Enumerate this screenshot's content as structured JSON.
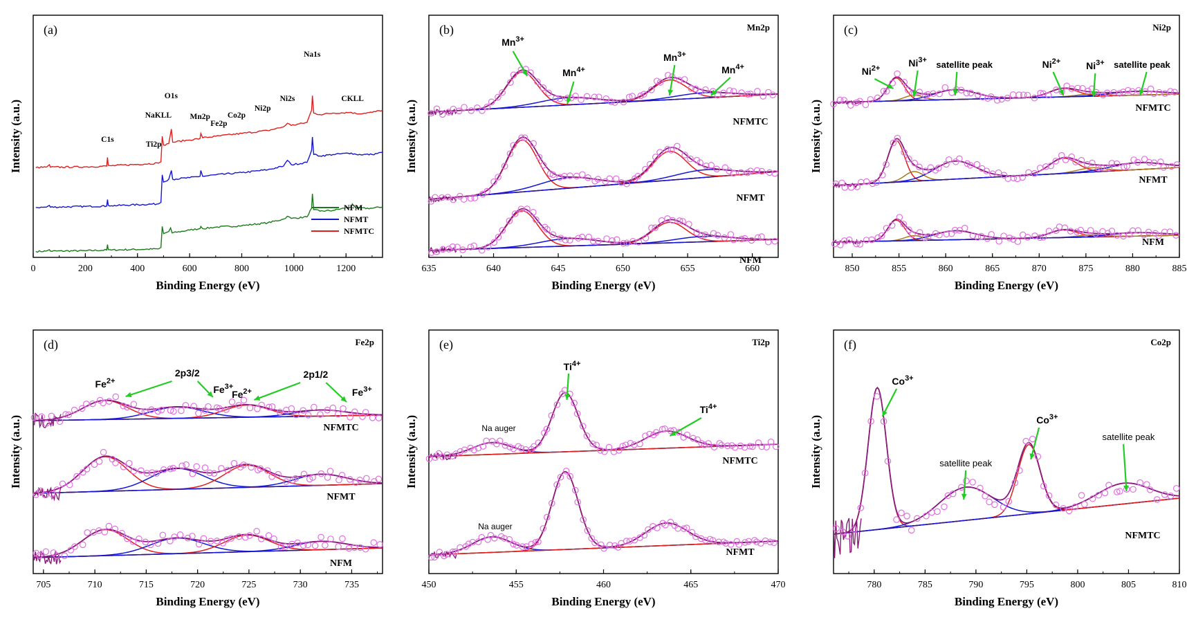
{
  "colors": {
    "nfm": "#1a7a1a",
    "nfmt": "#1414d4",
    "nfmtc": "#e01e1e",
    "fit_envelope": "#8a1a7a",
    "component_1": "#e01e1e",
    "component_2": "#1414d4",
    "component_3": "#a87a1a",
    "background": "#2a7a1a",
    "raw_points": "#e070e0",
    "arrow": "#22cc22"
  },
  "ylabel": "Intensity (a.u.)",
  "xlabel": "Binding Energy (eV)",
  "chart_data": [
    {
      "id": "a",
      "panel_label": "(a)",
      "type": "line",
      "x_ticks": [
        0,
        200,
        400,
        600,
        800,
        1000,
        1200
      ],
      "xlim": [
        0,
        1340
      ],
      "legend": [
        "NFM",
        "NFMT",
        "NFMTC"
      ],
      "legend_position": "bottom-right",
      "series": [
        {
          "name": "NFM",
          "offset": 0.0,
          "points": [
            [
              10,
              0.5
            ],
            [
              50,
              1
            ],
            [
              62,
              3
            ],
            [
              66,
              1
            ],
            [
              200,
              1.5
            ],
            [
              282,
              2.5
            ],
            [
              285,
              10
            ],
            [
              288,
              3
            ],
            [
              300,
              2.5
            ],
            [
              480,
              4
            ],
            [
              490,
              6
            ],
            [
              495,
              35
            ],
            [
              500,
              25
            ],
            [
              520,
              28
            ],
            [
              527,
              33
            ],
            [
              533,
              26
            ],
            [
              600,
              30
            ],
            [
              640,
              32
            ],
            [
              643,
              35
            ],
            [
              650,
              32
            ],
            [
              700,
              34
            ],
            [
              800,
              36
            ],
            [
              900,
              40
            ],
            [
              960,
              45
            ],
            [
              975,
              49
            ],
            [
              990,
              46
            ],
            [
              1050,
              48
            ],
            [
              1068,
              60
            ],
            [
              1071,
              80
            ],
            [
              1076,
              58
            ],
            [
              1100,
              56
            ],
            [
              1150,
              57
            ],
            [
              1220,
              62
            ],
            [
              1224,
              66
            ],
            [
              1240,
              60
            ],
            [
              1300,
              60
            ],
            [
              1340,
              62
            ]
          ]
        },
        {
          "name": "NFMT",
          "offset": 0.0,
          "points": [
            [
              10,
              1
            ],
            [
              50,
              1.5
            ],
            [
              62,
              4
            ],
            [
              66,
              1.5
            ],
            [
              200,
              2.5
            ],
            [
              282,
              3
            ],
            [
              285,
              12
            ],
            [
              288,
              4
            ],
            [
              300,
              3.5
            ],
            [
              480,
              6
            ],
            [
              490,
              8
            ],
            [
              495,
              46
            ],
            [
              500,
              36
            ],
            [
              520,
              40
            ],
            [
              530,
              52
            ],
            [
              535,
              40
            ],
            [
              600,
              42
            ],
            [
              640,
              44
            ],
            [
              643,
              52
            ],
            [
              650,
              44
            ],
            [
              700,
              46
            ],
            [
              800,
              49
            ],
            [
              900,
              53
            ],
            [
              960,
              58
            ],
            [
              975,
              66
            ],
            [
              990,
              60
            ],
            [
              1050,
              63
            ],
            [
              1068,
              80
            ],
            [
              1071,
              98
            ],
            [
              1076,
              74
            ],
            [
              1100,
              72
            ],
            [
              1150,
              74
            ],
            [
              1220,
              76
            ],
            [
              1240,
              74
            ],
            [
              1300,
              74
            ],
            [
              1340,
              77
            ]
          ]
        },
        {
          "name": "NFMTC",
          "offset": 0.0,
          "points": [
            [
              10,
              1
            ],
            [
              50,
              1.5
            ],
            [
              62,
              5
            ],
            [
              66,
              1.5
            ],
            [
              200,
              2
            ],
            [
              282,
              3
            ],
            [
              285,
              15
            ],
            [
              288,
              4
            ],
            [
              300,
              3.5
            ],
            [
              480,
              7
            ],
            [
              490,
              9
            ],
            [
              495,
              44
            ],
            [
              500,
              32
            ],
            [
              520,
              34
            ],
            [
              530,
              54
            ],
            [
              535,
              36
            ],
            [
              600,
              39
            ],
            [
              640,
              41
            ],
            [
              643,
              48
            ],
            [
              650,
              42
            ],
            [
              700,
              44
            ],
            [
              800,
              48
            ],
            [
              900,
              52
            ],
            [
              960,
              57
            ],
            [
              975,
              62
            ],
            [
              990,
              59
            ],
            [
              1050,
              63
            ],
            [
              1068,
              80
            ],
            [
              1071,
              100
            ],
            [
              1076,
              76
            ],
            [
              1100,
              74
            ],
            [
              1150,
              76
            ],
            [
              1220,
              77
            ],
            [
              1240,
              75
            ],
            [
              1300,
              77
            ],
            [
              1340,
              80
            ]
          ]
        }
      ],
      "annotations": [
        "C1s",
        "Ti2p",
        "NaKLL",
        "O1s",
        "Mn2p",
        "Fe2p",
        "Co2p",
        "Ni2p",
        "Ni2s",
        "Na1s",
        "CKLL"
      ]
    },
    {
      "id": "b",
      "panel_label": "(b)",
      "element_label": "Mn2p",
      "type": "line",
      "xlim": [
        635,
        662
      ],
      "x_ticks": [
        635,
        640,
        645,
        650,
        655,
        660
      ],
      "samples": [
        "NFMTC",
        "NFMT",
        "NFM"
      ],
      "peaks": [
        {
          "name": "Mn3+",
          "center": 642.2,
          "label": "Mn3+"
        },
        {
          "name": "Mn4+",
          "center": 645.5,
          "label": "Mn4+"
        },
        {
          "name": "Mn3+",
          "center": 653.7,
          "label": "Mn3+"
        },
        {
          "name": "Mn4+",
          "center": 656.0,
          "label": "Mn4+"
        }
      ]
    },
    {
      "id": "c",
      "panel_label": "(c)",
      "element_label": "Ni2p",
      "type": "line",
      "xlim": [
        848,
        885
      ],
      "x_ticks": [
        850,
        855,
        860,
        865,
        870,
        875,
        880,
        885
      ],
      "samples": [
        "NFMTC",
        "NFMT",
        "NFM"
      ],
      "peaks": [
        {
          "center": 854.7,
          "label": "Ni2+"
        },
        {
          "center": 856.5,
          "label": "Ni3+"
        },
        {
          "center": 861.0,
          "label": "satellite peak"
        },
        {
          "center": 872.5,
          "label": "Ni2+"
        },
        {
          "center": 875.5,
          "label": "Ni3+"
        },
        {
          "center": 880.5,
          "label": "satellite peak"
        }
      ]
    },
    {
      "id": "d",
      "panel_label": "(d)",
      "element_label": "Fe2p",
      "type": "line",
      "xlim": [
        704,
        738
      ],
      "x_ticks": [
        705,
        710,
        715,
        720,
        725,
        730,
        735
      ],
      "samples": [
        "NFMTC",
        "NFMT",
        "NFM"
      ],
      "group_labels": [
        "2p3/2",
        "2p1/2"
      ],
      "peaks": [
        {
          "center": 711.0,
          "label": "Fe2+"
        },
        {
          "center": 718.5,
          "label": "Fe3+"
        },
        {
          "center": 724.5,
          "label": "Fe2+"
        },
        {
          "center": 732.5,
          "label": "Fe3+"
        }
      ]
    },
    {
      "id": "e",
      "panel_label": "(e)",
      "element_label": "Ti2p",
      "type": "line",
      "xlim": [
        450,
        470
      ],
      "x_ticks": [
        450,
        455,
        460,
        465,
        470
      ],
      "samples": [
        "NFMTC",
        "NFMT"
      ],
      "peaks": [
        {
          "center": 453.6,
          "label": "Na auger"
        },
        {
          "center": 457.8,
          "label": "Ti4+"
        },
        {
          "center": 463.6,
          "label": "Ti4+"
        }
      ]
    },
    {
      "id": "f",
      "panel_label": "(f)",
      "element_label": "Co2p",
      "type": "line",
      "xlim": [
        776,
        810
      ],
      "x_ticks": [
        780,
        785,
        790,
        795,
        800,
        805,
        810
      ],
      "samples": [
        "NFMTC"
      ],
      "peaks": [
        {
          "center": 780.3,
          "label": "Co3+"
        },
        {
          "center": 789.0,
          "label": "satellite peak"
        },
        {
          "center": 795.2,
          "label": "Co3+"
        },
        {
          "center": 804.5,
          "label": "satellite peak"
        }
      ]
    }
  ]
}
